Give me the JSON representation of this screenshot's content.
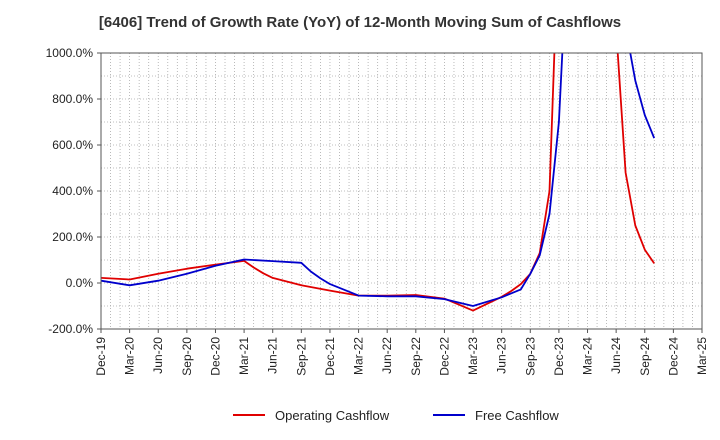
{
  "chart_data": {
    "type": "line",
    "title": "[6406]  Trend of Growth Rate (YoY) of 12-Month Moving Sum of Cashflows",
    "xlabel": "",
    "ylabel": "",
    "ylim": [
      -200,
      1000
    ],
    "y_ticks": [
      "1000.0%",
      "800.0%",
      "600.0%",
      "400.0%",
      "200.0%",
      "0.0%",
      "-200.0%"
    ],
    "y_tick_values": [
      1000,
      800,
      600,
      400,
      200,
      0,
      -200
    ],
    "categories": [
      "Dec-19",
      "Mar-20",
      "Jun-20",
      "Sep-20",
      "Dec-20",
      "Mar-21",
      "Jun-21",
      "Sep-21",
      "Dec-21",
      "Mar-22",
      "Jun-22",
      "Sep-22",
      "Dec-22",
      "Mar-23",
      "Jun-23",
      "Sep-23",
      "Dec-23",
      "Mar-24",
      "Jun-24",
      "Sep-24",
      "Dec-24",
      "Mar-25"
    ],
    "grid": true,
    "legend_position": "bottom",
    "series": [
      {
        "name": "Operating Cashflow",
        "color": "#e00000",
        "points": [
          [
            0,
            22
          ],
          [
            1,
            15
          ],
          [
            2,
            40
          ],
          [
            3,
            62
          ],
          [
            4,
            80
          ],
          [
            5,
            96
          ],
          [
            5.33,
            68
          ],
          [
            5.67,
            42
          ],
          [
            6,
            22
          ],
          [
            7,
            -10
          ],
          [
            8,
            -33
          ],
          [
            9,
            -55
          ],
          [
            10,
            -55
          ],
          [
            11,
            -52
          ],
          [
            12,
            -68
          ],
          [
            13,
            -120
          ],
          [
            14,
            -60
          ],
          [
            14.33,
            -35
          ],
          [
            14.67,
            -5
          ],
          [
            15,
            40
          ],
          [
            15.33,
            130
          ],
          [
            15.67,
            400
          ],
          [
            15.9,
            1200
          ],
          [
            17.95,
            1200
          ],
          [
            18.33,
            480
          ],
          [
            18.67,
            250
          ],
          [
            19,
            145
          ],
          [
            19.33,
            85
          ]
        ]
      },
      {
        "name": "Free Cashflow",
        "color": "#0000cc",
        "points": [
          [
            0,
            10
          ],
          [
            1,
            -10
          ],
          [
            2,
            10
          ],
          [
            3,
            40
          ],
          [
            4,
            75
          ],
          [
            5,
            102
          ],
          [
            6,
            95
          ],
          [
            7,
            88
          ],
          [
            7.33,
            50
          ],
          [
            7.67,
            20
          ],
          [
            8,
            -5
          ],
          [
            9,
            -55
          ],
          [
            10,
            -58
          ],
          [
            11,
            -58
          ],
          [
            12,
            -70
          ],
          [
            13,
            -100
          ],
          [
            14,
            -62
          ],
          [
            14.33,
            -45
          ],
          [
            14.67,
            -28
          ],
          [
            15,
            40
          ],
          [
            15.33,
            120
          ],
          [
            15.67,
            300
          ],
          [
            16,
            700
          ],
          [
            16.2,
            1200
          ],
          [
            18.2,
            1200
          ],
          [
            18.67,
            880
          ],
          [
            19,
            730
          ],
          [
            19.33,
            630
          ]
        ]
      }
    ]
  }
}
